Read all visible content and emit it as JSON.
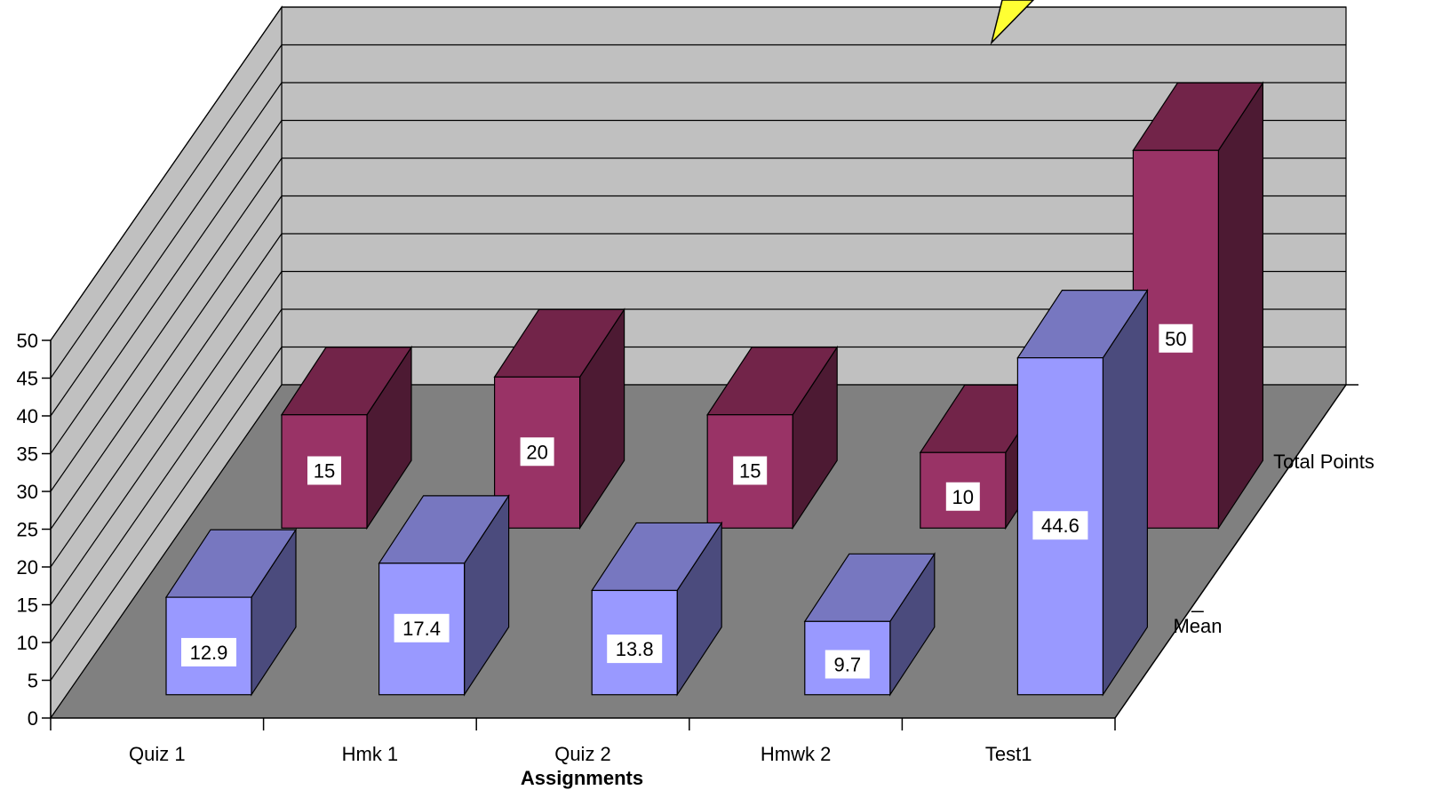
{
  "chart_data": {
    "type": "bar",
    "subtype": "3d-column",
    "title": "",
    "xlabel": "Assignments",
    "ylabel": "",
    "categories": [
      "Quiz 1",
      "Hmk 1",
      "Quiz 2",
      "Hmwk 2",
      "Test1"
    ],
    "series": [
      {
        "name": "Mean",
        "values": [
          12.9,
          17.4,
          13.8,
          9.7,
          44.6
        ],
        "color": "#9999ff"
      },
      {
        "name": "Total Points",
        "values": [
          15,
          20,
          15,
          10,
          50
        ],
        "color": "#993366"
      }
    ],
    "ylim": [
      0,
      50
    ],
    "yticks": [
      0,
      5,
      10,
      15,
      20,
      25,
      30,
      35,
      40,
      45,
      50
    ],
    "data_labels": true,
    "grid": true,
    "legend": "none",
    "colors": {
      "wall": "#c0c0c0",
      "floor": "#808080",
      "mean_front": "#9999ff",
      "mean_top": "#7777c0",
      "mean_side": "#4b4b7d",
      "total_front": "#993366",
      "total_top": "#722449",
      "total_side": "#4d1a33",
      "callout": "#ffff33"
    }
  }
}
